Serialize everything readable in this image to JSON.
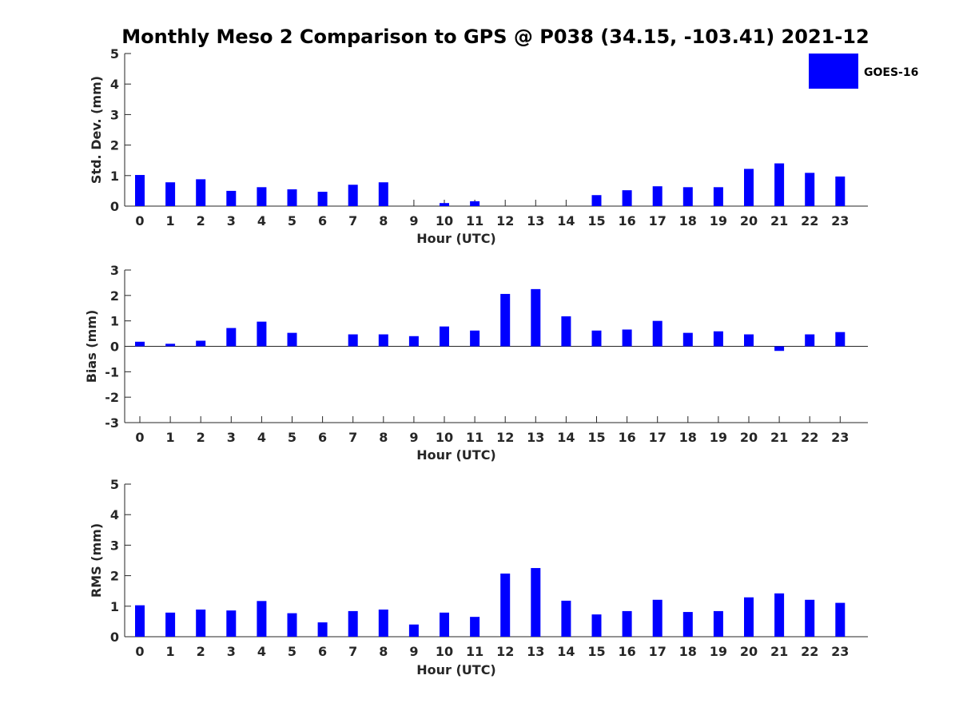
{
  "title": "Monthly Meso 2 Comparison to GPS @ P038 (34.15, -103.41) 2021-12",
  "legend": {
    "label": "GOES-16",
    "color": "#0000ff"
  },
  "chart_data": [
    {
      "type": "bar",
      "xlabel": "Hour (UTC)",
      "ylabel": "Std. Dev. (mm)",
      "ylim": [
        0,
        5
      ],
      "yticks": [
        0,
        1,
        2,
        3,
        4,
        5
      ],
      "categories": [
        "0",
        "1",
        "2",
        "3",
        "4",
        "5",
        "6",
        "7",
        "8",
        "9",
        "10",
        "11",
        "12",
        "13",
        "14",
        "15",
        "16",
        "17",
        "18",
        "19",
        "20",
        "21",
        "22",
        "23"
      ],
      "series": [
        {
          "name": "GOES-16",
          "color": "#0000ff",
          "values": [
            1.02,
            0.78,
            0.88,
            0.5,
            0.62,
            0.55,
            0.47,
            0.7,
            0.78,
            null,
            0.1,
            0.16,
            null,
            null,
            null,
            0.36,
            0.52,
            0.65,
            0.62,
            0.62,
            1.22,
            1.4,
            1.09,
            0.97
          ]
        }
      ],
      "grid": false
    },
    {
      "type": "bar",
      "xlabel": "Hour (UTC)",
      "ylabel": "Bias (mm)",
      "ylim": [
        -3,
        3
      ],
      "yticks": [
        -3,
        -2,
        -1,
        0,
        1,
        2,
        3
      ],
      "categories": [
        "0",
        "1",
        "2",
        "3",
        "4",
        "5",
        "6",
        "7",
        "8",
        "9",
        "10",
        "11",
        "12",
        "13",
        "14",
        "15",
        "16",
        "17",
        "18",
        "19",
        "20",
        "21",
        "22",
        "23"
      ],
      "series": [
        {
          "name": "GOES-16",
          "color": "#0000ff",
          "values": [
            0.18,
            0.1,
            0.22,
            0.72,
            0.97,
            0.53,
            0.0,
            0.47,
            0.47,
            0.4,
            0.78,
            0.62,
            2.06,
            2.25,
            1.18,
            0.62,
            0.66,
            1.0,
            0.53,
            0.59,
            0.47,
            -0.18,
            0.47,
            0.56
          ]
        }
      ],
      "grid": false
    },
    {
      "type": "bar",
      "xlabel": "Hour (UTC)",
      "ylabel": "RMS (mm)",
      "ylim": [
        0,
        5
      ],
      "yticks": [
        0,
        1,
        2,
        3,
        4,
        5
      ],
      "categories": [
        "0",
        "1",
        "2",
        "3",
        "4",
        "5",
        "6",
        "7",
        "8",
        "9",
        "10",
        "11",
        "12",
        "13",
        "14",
        "15",
        "16",
        "17",
        "18",
        "19",
        "20",
        "21",
        "22",
        "23"
      ],
      "series": [
        {
          "name": "GOES-16",
          "color": "#0000ff",
          "values": [
            1.03,
            0.79,
            0.89,
            0.86,
            1.17,
            0.77,
            0.47,
            0.84,
            0.89,
            0.4,
            0.79,
            0.65,
            2.07,
            2.25,
            1.18,
            0.73,
            0.84,
            1.21,
            0.81,
            0.84,
            1.29,
            1.42,
            1.21,
            1.11
          ]
        }
      ],
      "grid": false
    }
  ]
}
